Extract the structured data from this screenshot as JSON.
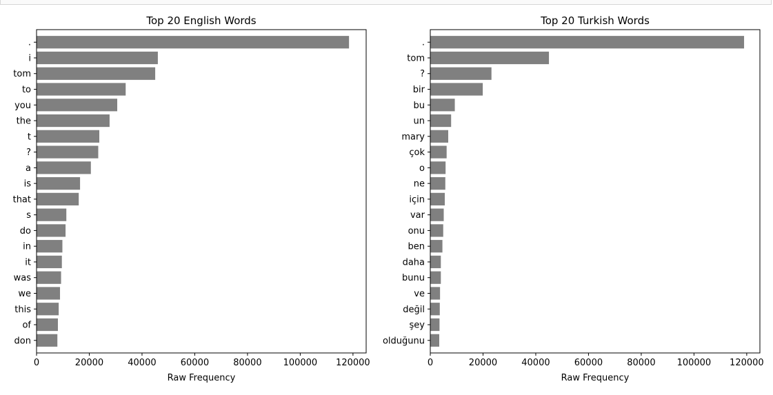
{
  "colors": {
    "bar": "#808080",
    "axis": "#000000",
    "background": "#ffffff"
  },
  "chart_data": [
    {
      "type": "bar",
      "orientation": "horizontal",
      "title": "Top 20 English Words",
      "xlabel": "Raw Frequency",
      "ylabel": "",
      "xlim": [
        0,
        125000
      ],
      "xticks": [
        0,
        20000,
        40000,
        60000,
        80000,
        100000,
        120000
      ],
      "xtick_labels": [
        "0",
        "20000",
        "40000",
        "60000",
        "80000",
        "100000",
        "120000"
      ],
      "grid": false,
      "categories": [
        ".",
        "i",
        "tom",
        "to",
        "you",
        "the",
        "t",
        "?",
        "a",
        "is",
        "that",
        "s",
        "do",
        "in",
        "it",
        "was",
        "we",
        "this",
        "of",
        "don"
      ],
      "values": [
        118500,
        46000,
        45000,
        33800,
        30600,
        27700,
        23800,
        23400,
        20600,
        16500,
        16000,
        11300,
        11000,
        9800,
        9600,
        9300,
        8900,
        8400,
        8100,
        7900
      ]
    },
    {
      "type": "bar",
      "orientation": "horizontal",
      "title": "Top 20 Turkish Words",
      "xlabel": "Raw Frequency",
      "ylabel": "",
      "xlim": [
        0,
        125000
      ],
      "xticks": [
        0,
        20000,
        40000,
        60000,
        80000,
        100000,
        120000
      ],
      "xtick_labels": [
        "0",
        "20000",
        "40000",
        "60000",
        "80000",
        "100000",
        "120000"
      ],
      "grid": false,
      "categories": [
        ".",
        "tom",
        "?",
        "bir",
        "bu",
        "un",
        "mary",
        "çok",
        "o",
        "ne",
        "için",
        "var",
        "onu",
        "ben",
        "daha",
        "bunu",
        "ve",
        "değil",
        "şey",
        "olduğunu"
      ],
      "values": [
        119000,
        45000,
        23200,
        19900,
        9300,
        7900,
        6800,
        6200,
        5800,
        5700,
        5500,
        5100,
        4900,
        4600,
        4000,
        4000,
        3700,
        3600,
        3500,
        3400
      ]
    }
  ]
}
